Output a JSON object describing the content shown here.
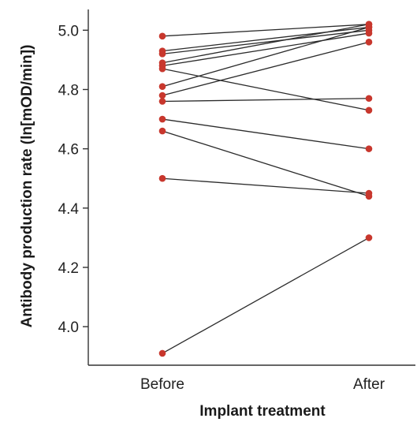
{
  "chart_data": {
    "type": "line",
    "title": "",
    "xlabel": "Implant treatment",
    "ylabel": "Antibody production rate (ln[mOD/min])",
    "categories": [
      "Before",
      "After"
    ],
    "ylim": [
      3.87,
      5.07
    ],
    "yticks": [
      4.0,
      4.2,
      4.4,
      4.6,
      4.8,
      5.0
    ],
    "ytick_labels": [
      "4.0",
      "4.2",
      "4.4",
      "4.6",
      "4.8",
      "5.0"
    ],
    "grid": false,
    "colors": {
      "point": "#c8372d",
      "line": "#2b2b2b",
      "axis": "#333333"
    },
    "series": [
      {
        "values": [
          4.98,
          5.02
        ]
      },
      {
        "values": [
          4.93,
          5.01
        ]
      },
      {
        "values": [
          4.92,
          5.0
        ]
      },
      {
        "values": [
          4.89,
          5.02
        ]
      },
      {
        "values": [
          4.88,
          4.99
        ]
      },
      {
        "values": [
          4.87,
          4.73
        ]
      },
      {
        "values": [
          4.81,
          5.01
        ]
      },
      {
        "values": [
          4.78,
          4.96
        ]
      },
      {
        "values": [
          4.76,
          4.77
        ]
      },
      {
        "values": [
          4.7,
          4.6
        ]
      },
      {
        "values": [
          4.66,
          4.44
        ]
      },
      {
        "values": [
          4.5,
          4.45
        ]
      },
      {
        "values": [
          3.91,
          4.3
        ]
      }
    ]
  }
}
